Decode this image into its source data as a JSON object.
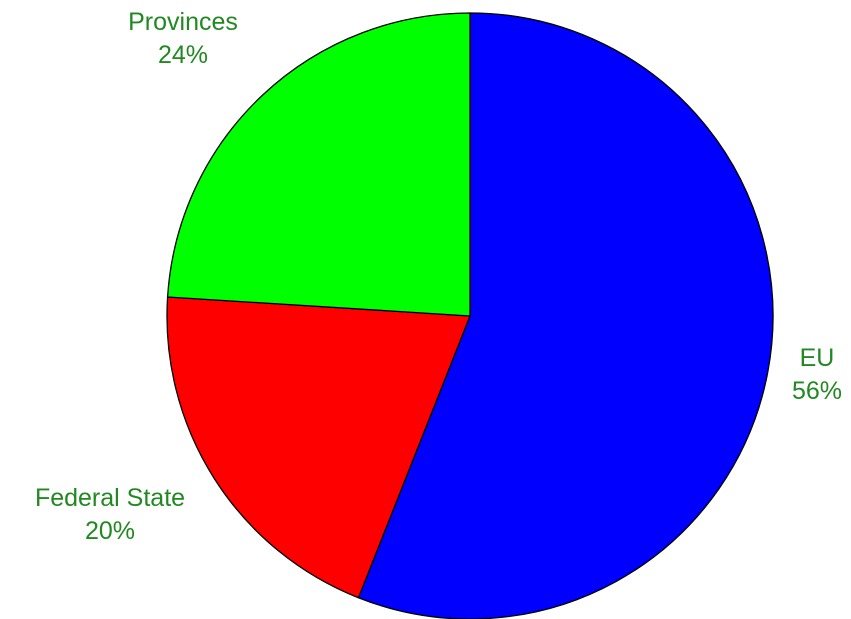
{
  "chart_data": {
    "type": "pie",
    "title": "",
    "slices": [
      {
        "label": "EU",
        "value": 56,
        "value_label": "56%",
        "color": "#0000ff"
      },
      {
        "label": "Federal State",
        "value": 20,
        "value_label": "20%",
        "color": "#ff0000"
      },
      {
        "label": "Provinces",
        "value": 24,
        "value_label": "24%",
        "color": "#00ff00"
      }
    ],
    "start": "top",
    "direction": "clockwise",
    "label_color": "#228822",
    "legend": "none"
  }
}
